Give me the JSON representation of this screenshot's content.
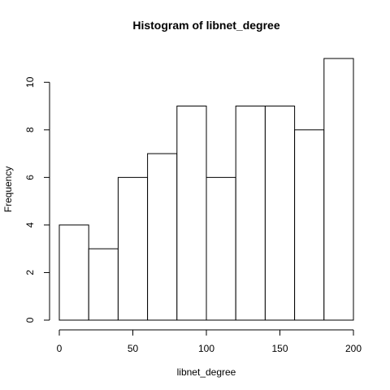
{
  "chart_data": {
    "type": "bar",
    "title": "Histogram of libnet_degree",
    "xlabel": "libnet_degree",
    "ylabel": "Frequency",
    "bins": [
      {
        "start": 0,
        "end": 20,
        "count": 4
      },
      {
        "start": 20,
        "end": 40,
        "count": 3
      },
      {
        "start": 40,
        "end": 60,
        "count": 6
      },
      {
        "start": 60,
        "end": 80,
        "count": 7
      },
      {
        "start": 80,
        "end": 100,
        "count": 9
      },
      {
        "start": 100,
        "end": 120,
        "count": 6
      },
      {
        "start": 120,
        "end": 140,
        "count": 9
      },
      {
        "start": 140,
        "end": 160,
        "count": 9
      },
      {
        "start": 160,
        "end": 180,
        "count": 8
      },
      {
        "start": 180,
        "end": 200,
        "count": 11
      }
    ],
    "xlim": [
      0,
      200
    ],
    "ylim": [
      0,
      11
    ],
    "xticks": [
      0,
      50,
      100,
      150,
      200
    ],
    "yticks": [
      0,
      2,
      4,
      6,
      8,
      10
    ],
    "grid": false,
    "colors": {
      "bar_fill": "#ffffff",
      "bar_stroke": "#000000"
    }
  }
}
